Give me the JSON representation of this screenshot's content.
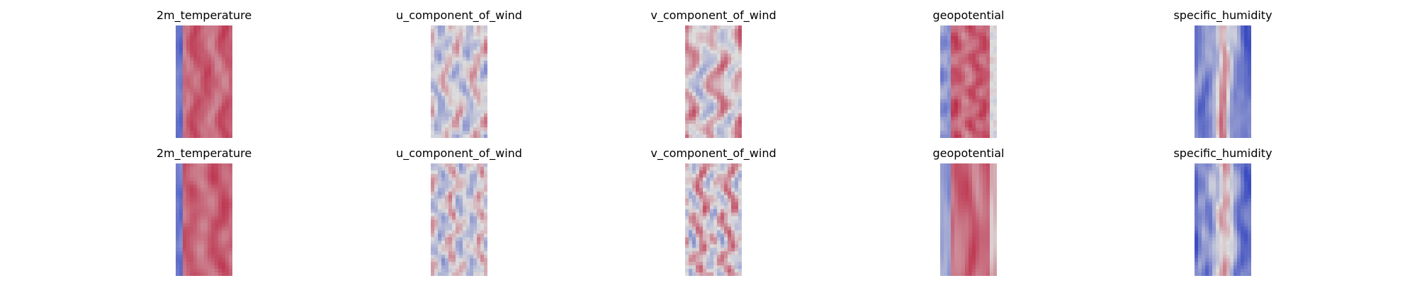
{
  "figure": {
    "rows": [
      {
        "panels": [
          {
            "title": "2m_temperature",
            "field": "2m_temperature"
          },
          {
            "title": "u_component_of_wind",
            "field": "u_component_of_wind"
          },
          {
            "title": "v_component_of_wind",
            "field": "v_component_of_wind"
          },
          {
            "title": "geopotential",
            "field": "geopotential"
          },
          {
            "title": "specific_humidity",
            "field": "specific_humidity"
          }
        ]
      },
      {
        "panels": [
          {
            "title": "2m_temperature",
            "field": "2m_temperature"
          },
          {
            "title": "u_component_of_wind",
            "field": "u_component_of_wind"
          },
          {
            "title": "v_component_of_wind",
            "field": "v_component_of_wind"
          },
          {
            "title": "geopotential",
            "field": "geopotential"
          },
          {
            "title": "specific_humidity",
            "field": "specific_humidity"
          }
        ]
      }
    ]
  },
  "chart_data": {
    "type": "heatmap",
    "colormap": "coolwarm",
    "colors": {
      "low": "#3b4cc0",
      "mid": "#dddddd",
      "high": "#b40426"
    },
    "axes_visible": false,
    "grid": false,
    "panels": [
      {
        "row": 0,
        "col": 0,
        "title": "2m_temperature"
      },
      {
        "row": 0,
        "col": 1,
        "title": "u_component_of_wind"
      },
      {
        "row": 0,
        "col": 2,
        "title": "v_component_of_wind"
      },
      {
        "row": 0,
        "col": 3,
        "title": "geopotential"
      },
      {
        "row": 0,
        "col": 4,
        "title": "specific_humidity"
      },
      {
        "row": 1,
        "col": 0,
        "title": "2m_temperature"
      },
      {
        "row": 1,
        "col": 1,
        "title": "u_component_of_wind"
      },
      {
        "row": 1,
        "col": 2,
        "title": "v_component_of_wind"
      },
      {
        "row": 1,
        "col": 3,
        "title": "geopotential"
      },
      {
        "row": 1,
        "col": 4,
        "title": "specific_humidity"
      }
    ]
  }
}
